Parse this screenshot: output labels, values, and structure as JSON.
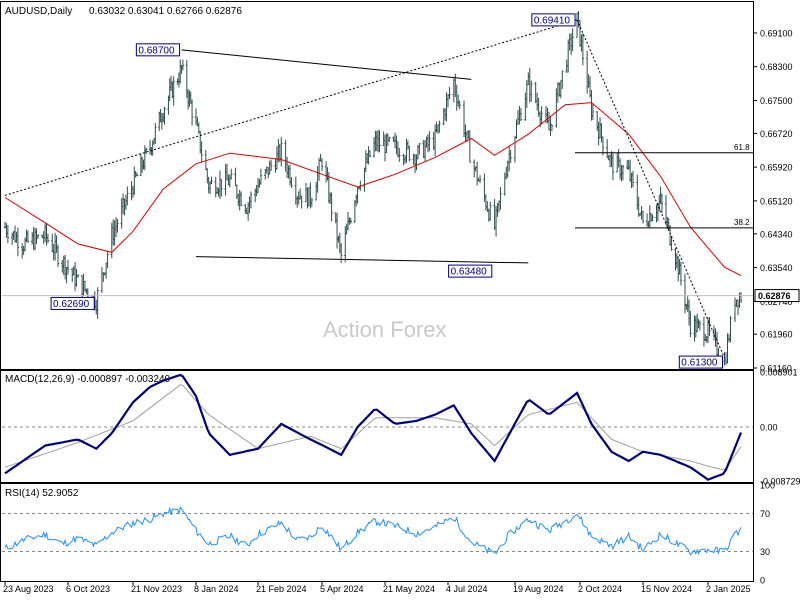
{
  "header": {
    "symbol_label": "AUDUSD,Daily",
    "ohlc": "0.63032 0.63041 0.62766 0.62876"
  },
  "watermark": "Action Forex",
  "colors": {
    "bars": "#2f4f4f",
    "ma": "#dd0000",
    "macd": "#000080",
    "signal": "#a0a0a0",
    "rsi": "#1e90ff",
    "label_box_text": "#000080",
    "trendlines": "#000000",
    "fib_lines": "#000000",
    "dotted_levels": "#888888"
  },
  "chart_data": [
    {
      "type": "ohlc",
      "panel": "price",
      "title": "AUDUSD,Daily",
      "ylim": [
        0.6116,
        0.6981
      ],
      "y_ticks": [
        "0.69100",
        "0.68300",
        "0.67500",
        "0.66720",
        "0.65920",
        "0.65120",
        "0.64340",
        "0.63540",
        "0.62740",
        "0.61960",
        "0.61160"
      ],
      "current_price": "0.62876",
      "x_ticks": [
        "23 Aug 2023",
        "6 Oct 2023",
        "21 Nov 2023",
        "8 Jan 2024",
        "21 Feb 2024",
        "5 Apr 2024",
        "21 May 2024",
        "4 Jul 2024",
        "19 Aug 2024",
        "2 Oct 2024",
        "15 Nov 2024",
        "2 Jan 2025"
      ],
      "series": [
        {
          "kind": "close",
          "points": [
            [
              "2023-08-23",
              0.645
            ],
            [
              "2023-09-05",
              0.641
            ],
            [
              "2023-09-20",
              0.643
            ],
            [
              "2023-10-02",
              0.637
            ],
            [
              "2023-10-13",
              0.632
            ],
            [
              "2023-10-26",
              0.6275
            ],
            [
              "2023-11-06",
              0.643
            ],
            [
              "2023-11-21",
              0.655
            ],
            [
              "2023-12-04",
              0.664
            ],
            [
              "2023-12-14",
              0.673
            ],
            [
              "2023-12-28",
              0.6825
            ],
            [
              "2024-01-08",
              0.669
            ],
            [
              "2024-01-17",
              0.655
            ],
            [
              "2024-02-01",
              0.656
            ],
            [
              "2024-02-13",
              0.65
            ],
            [
              "2024-02-21",
              0.655
            ],
            [
              "2024-03-08",
              0.663
            ],
            [
              "2024-03-19",
              0.653
            ],
            [
              "2024-03-28",
              0.652
            ],
            [
              "2024-04-05",
              0.661
            ],
            [
              "2024-04-19",
              0.638
            ],
            [
              "2024-05-01",
              0.655
            ],
            [
              "2024-05-14",
              0.665
            ],
            [
              "2024-05-28",
              0.664
            ],
            [
              "2024-06-12",
              0.662
            ],
            [
              "2024-06-25",
              0.666
            ],
            [
              "2024-07-08",
              0.6795
            ],
            [
              "2024-07-20",
              0.661
            ],
            [
              "2024-08-05",
              0.645
            ],
            [
              "2024-08-14",
              0.661
            ],
            [
              "2024-08-28",
              0.679
            ],
            [
              "2024-09-11",
              0.668
            ],
            [
              "2024-09-22",
              0.684
            ],
            [
              "2024-09-30",
              0.6941
            ],
            [
              "2024-10-10",
              0.673
            ],
            [
              "2024-10-24",
              0.66
            ],
            [
              "2024-11-05",
              0.658
            ],
            [
              "2024-11-15",
              0.646
            ],
            [
              "2024-11-28",
              0.651
            ],
            [
              "2024-12-10",
              0.637
            ],
            [
              "2024-12-20",
              0.622
            ],
            [
              "2025-01-02",
              0.62
            ],
            [
              "2025-01-13",
              0.613
            ],
            [
              "2025-01-20",
              0.628
            ],
            [
              "2025-01-24",
              0.6288
            ]
          ]
        },
        {
          "kind": "moving_average",
          "points": [
            [
              "2023-08-23",
              0.652
            ],
            [
              "2023-09-20",
              0.646
            ],
            [
              "2023-10-13",
              0.641
            ],
            [
              "2023-11-06",
              0.639
            ],
            [
              "2023-11-21",
              0.644
            ],
            [
              "2023-12-14",
              0.654
            ],
            [
              "2024-01-08",
              0.66
            ],
            [
              "2024-02-01",
              0.6625
            ],
            [
              "2024-03-08",
              0.661
            ],
            [
              "2024-04-05",
              0.6575
            ],
            [
              "2024-05-01",
              0.6545
            ],
            [
              "2024-05-28",
              0.6575
            ],
            [
              "2024-06-25",
              0.6615
            ],
            [
              "2024-07-20",
              0.666
            ],
            [
              "2024-08-05",
              0.662
            ],
            [
              "2024-08-28",
              0.667
            ],
            [
              "2024-09-22",
              0.674
            ],
            [
              "2024-10-10",
              0.6745
            ],
            [
              "2024-11-05",
              0.667
            ],
            [
              "2024-11-28",
              0.657
            ],
            [
              "2024-12-20",
              0.645
            ],
            [
              "2025-01-13",
              0.6355
            ],
            [
              "2025-01-24",
              0.6335
            ]
          ]
        }
      ],
      "annotations": [
        {
          "label": "0.68700",
          "date": "2023-12-28",
          "price": 0.687
        },
        {
          "label": "0.69410",
          "date": "2024-09-30",
          "price": 0.6941
        },
        {
          "label": "0.62690",
          "date": "2023-10-26",
          "price": 0.6269
        },
        {
          "label": "0.63480",
          "date": "2024-08-05",
          "price": 0.6348
        },
        {
          "label": "0.61300",
          "date": "2025-01-13",
          "price": 0.613
        },
        {
          "label": "61.8",
          "price": 0.6626
        },
        {
          "label": "38.2",
          "price": 0.6448
        }
      ],
      "trendlines": [
        {
          "from": [
            "2023-12-28",
            0.687
          ],
          "to": [
            "2024-07-20",
            0.68
          ]
        },
        {
          "from": [
            "2024-01-08",
            0.638
          ],
          "to": [
            "2024-08-28",
            0.6365
          ]
        },
        {
          "from": [
            "2023-08-23",
            0.6525
          ],
          "to": [
            "2024-09-30",
            0.6941
          ],
          "style": "dotted"
        },
        {
          "from": [
            "2024-09-30",
            0.6941
          ],
          "to": [
            "2025-01-13",
            0.614
          ],
          "style": "dotted"
        }
      ]
    },
    {
      "type": "line",
      "panel": "macd",
      "title": "MACD(12,26,9) -0.000897 -0.003240",
      "ylim": [
        -0.008729,
        0.008901
      ],
      "y_ticks": [
        "0.008901",
        "0.00",
        "-0.008729"
      ],
      "series": [
        {
          "kind": "macd",
          "points": [
            [
              "2023-08-23",
              -0.0075
            ],
            [
              "2023-09-20",
              -0.003
            ],
            [
              "2023-10-13",
              -0.002
            ],
            [
              "2023-10-26",
              -0.0035
            ],
            [
              "2023-11-06",
              -0.001
            ],
            [
              "2023-11-21",
              0.004
            ],
            [
              "2023-12-04",
              0.0065
            ],
            [
              "2023-12-14",
              0.0075
            ],
            [
              "2023-12-28",
              0.0085
            ],
            [
              "2024-01-08",
              0.005
            ],
            [
              "2024-01-17",
              -0.001
            ],
            [
              "2024-02-01",
              -0.0045
            ],
            [
              "2024-02-21",
              -0.0035
            ],
            [
              "2024-03-08",
              0.0005
            ],
            [
              "2024-03-28",
              -0.002
            ],
            [
              "2024-04-19",
              -0.0045
            ],
            [
              "2024-05-01",
              0.0
            ],
            [
              "2024-05-14",
              0.003
            ],
            [
              "2024-05-28",
              0.0005
            ],
            [
              "2024-06-12",
              0.001
            ],
            [
              "2024-06-25",
              0.002
            ],
            [
              "2024-07-08",
              0.0035
            ],
            [
              "2024-07-20",
              -0.001
            ],
            [
              "2024-08-05",
              -0.0055
            ],
            [
              "2024-08-28",
              0.0045
            ],
            [
              "2024-09-11",
              0.002
            ],
            [
              "2024-09-30",
              0.0055
            ],
            [
              "2024-10-10",
              0.0005
            ],
            [
              "2024-10-24",
              -0.004
            ],
            [
              "2024-11-05",
              -0.0055
            ],
            [
              "2024-11-15",
              -0.004
            ],
            [
              "2024-11-28",
              -0.0045
            ],
            [
              "2024-12-20",
              -0.0065
            ],
            [
              "2025-01-02",
              -0.0085
            ],
            [
              "2025-01-13",
              -0.0075
            ],
            [
              "2025-01-24",
              -0.0009
            ]
          ]
        },
        {
          "kind": "signal",
          "points": [
            [
              "2023-08-23",
              -0.0065
            ],
            [
              "2023-10-13",
              -0.0025
            ],
            [
              "2023-11-21",
              0.001
            ],
            [
              "2023-12-28",
              0.007
            ],
            [
              "2024-01-17",
              0.002
            ],
            [
              "2024-02-21",
              -0.0035
            ],
            [
              "2024-03-28",
              -0.0015
            ],
            [
              "2024-04-19",
              -0.0035
            ],
            [
              "2024-05-14",
              0.0015
            ],
            [
              "2024-06-25",
              0.0015
            ],
            [
              "2024-07-20",
              0.0005
            ],
            [
              "2024-08-05",
              -0.003
            ],
            [
              "2024-08-28",
              0.002
            ],
            [
              "2024-09-30",
              0.004
            ],
            [
              "2024-10-24",
              -0.002
            ],
            [
              "2024-11-15",
              -0.004
            ],
            [
              "2024-12-20",
              -0.0055
            ],
            [
              "2025-01-13",
              -0.007
            ],
            [
              "2025-01-24",
              -0.0032
            ]
          ]
        }
      ]
    },
    {
      "type": "line",
      "panel": "rsi",
      "title": "RSI(14) 52.9052",
      "ylim": [
        0,
        100
      ],
      "y_ticks": [
        "100",
        "70",
        "30",
        "0"
      ],
      "series": [
        {
          "kind": "rsi",
          "points": [
            [
              "2023-08-23",
              33
            ],
            [
              "2023-09-05",
              42
            ],
            [
              "2023-09-20",
              48
            ],
            [
              "2023-10-02",
              38
            ],
            [
              "2023-10-13",
              44
            ],
            [
              "2023-10-26",
              36
            ],
            [
              "2023-11-06",
              50
            ],
            [
              "2023-11-21",
              60
            ],
            [
              "2023-12-04",
              64
            ],
            [
              "2023-12-14",
              70
            ],
            [
              "2023-12-28",
              74
            ],
            [
              "2024-01-08",
              52
            ],
            [
              "2024-01-17",
              38
            ],
            [
              "2024-02-01",
              46
            ],
            [
              "2024-02-13",
              36
            ],
            [
              "2024-02-21",
              48
            ],
            [
              "2024-03-08",
              60
            ],
            [
              "2024-03-19",
              42
            ],
            [
              "2024-03-28",
              45
            ],
            [
              "2024-04-05",
              58
            ],
            [
              "2024-04-19",
              32
            ],
            [
              "2024-05-01",
              50
            ],
            [
              "2024-05-14",
              62
            ],
            [
              "2024-05-28",
              57
            ],
            [
              "2024-06-12",
              49
            ],
            [
              "2024-06-25",
              56
            ],
            [
              "2024-07-08",
              66
            ],
            [
              "2024-07-20",
              40
            ],
            [
              "2024-08-05",
              27
            ],
            [
              "2024-08-14",
              46
            ],
            [
              "2024-08-28",
              64
            ],
            [
              "2024-09-11",
              52
            ],
            [
              "2024-09-22",
              62
            ],
            [
              "2024-09-30",
              70
            ],
            [
              "2024-10-10",
              46
            ],
            [
              "2024-10-24",
              36
            ],
            [
              "2024-11-05",
              46
            ],
            [
              "2024-11-15",
              32
            ],
            [
              "2024-11-28",
              48
            ],
            [
              "2024-12-10",
              38
            ],
            [
              "2024-12-20",
              30
            ],
            [
              "2025-01-02",
              32
            ],
            [
              "2025-01-13",
              30
            ],
            [
              "2025-01-20",
              48
            ],
            [
              "2025-01-24",
              52.9
            ]
          ]
        }
      ],
      "levels": [
        70,
        30
      ]
    }
  ]
}
